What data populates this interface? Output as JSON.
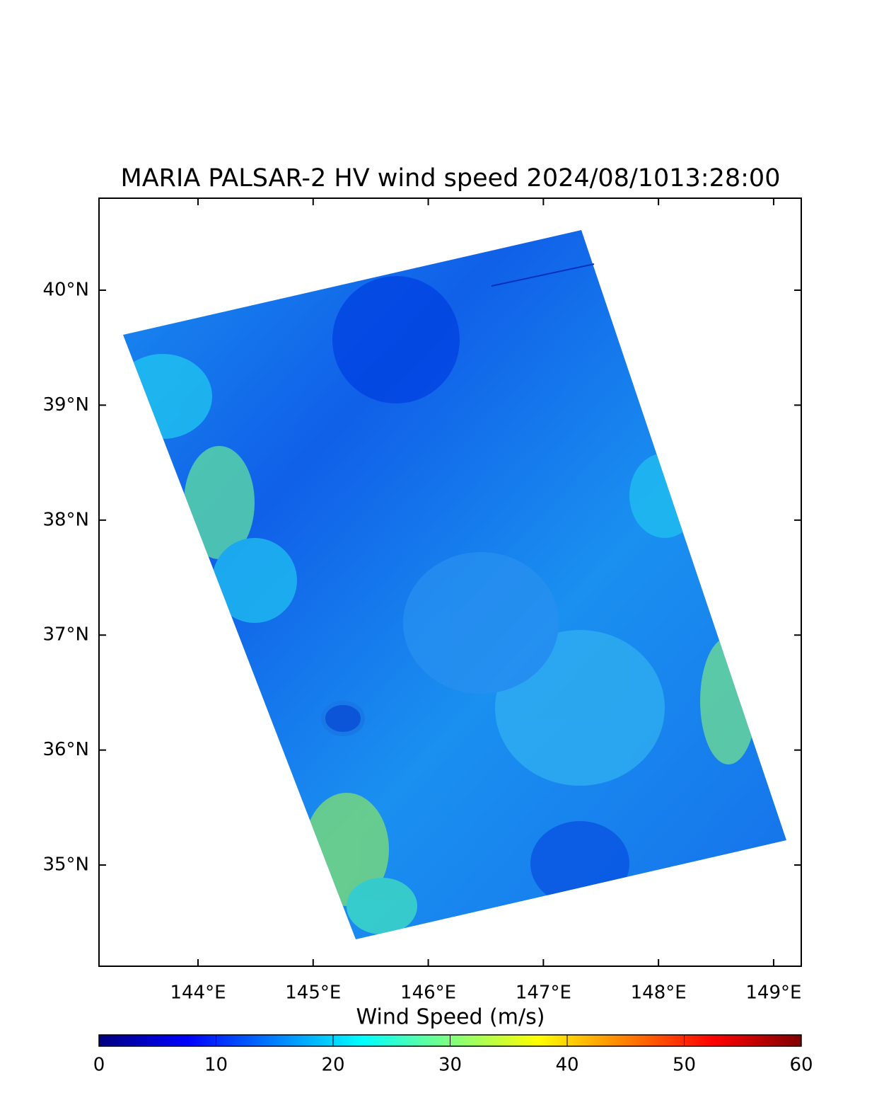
{
  "chart_data": {
    "type": "map",
    "title": "MARIA  PALSAR-2 HV  wind speed 2024/08/1013:28:00",
    "xlim": [
      143.14,
      149.24
    ],
    "ylim": [
      34.12,
      40.8
    ],
    "xticks": [
      {
        "value": 144,
        "label": "144°E"
      },
      {
        "value": 145,
        "label": "145°E"
      },
      {
        "value": 146,
        "label": "146°E"
      },
      {
        "value": 147,
        "label": "147°E"
      },
      {
        "value": 148,
        "label": "148°E"
      },
      {
        "value": 149,
        "label": "149°E"
      }
    ],
    "yticks": [
      {
        "value": 35,
        "label": "35°N"
      },
      {
        "value": 36,
        "label": "36°N"
      },
      {
        "value": 37,
        "label": "37°N"
      },
      {
        "value": 38,
        "label": "38°N"
      },
      {
        "value": 39,
        "label": "39°N"
      },
      {
        "value": 40,
        "label": "40°N"
      }
    ],
    "colorbar": {
      "label": "Wind Speed (m/s)",
      "lim": [
        0,
        60
      ],
      "ticks": [
        0,
        10,
        20,
        30,
        40,
        50,
        60
      ],
      "colors": [
        "#00007f",
        "#0000ff",
        "#007fff",
        "#00ffff",
        "#7fff7f",
        "#ffff00",
        "#ff7f00",
        "#ff0000",
        "#7f0000"
      ]
    }
  }
}
